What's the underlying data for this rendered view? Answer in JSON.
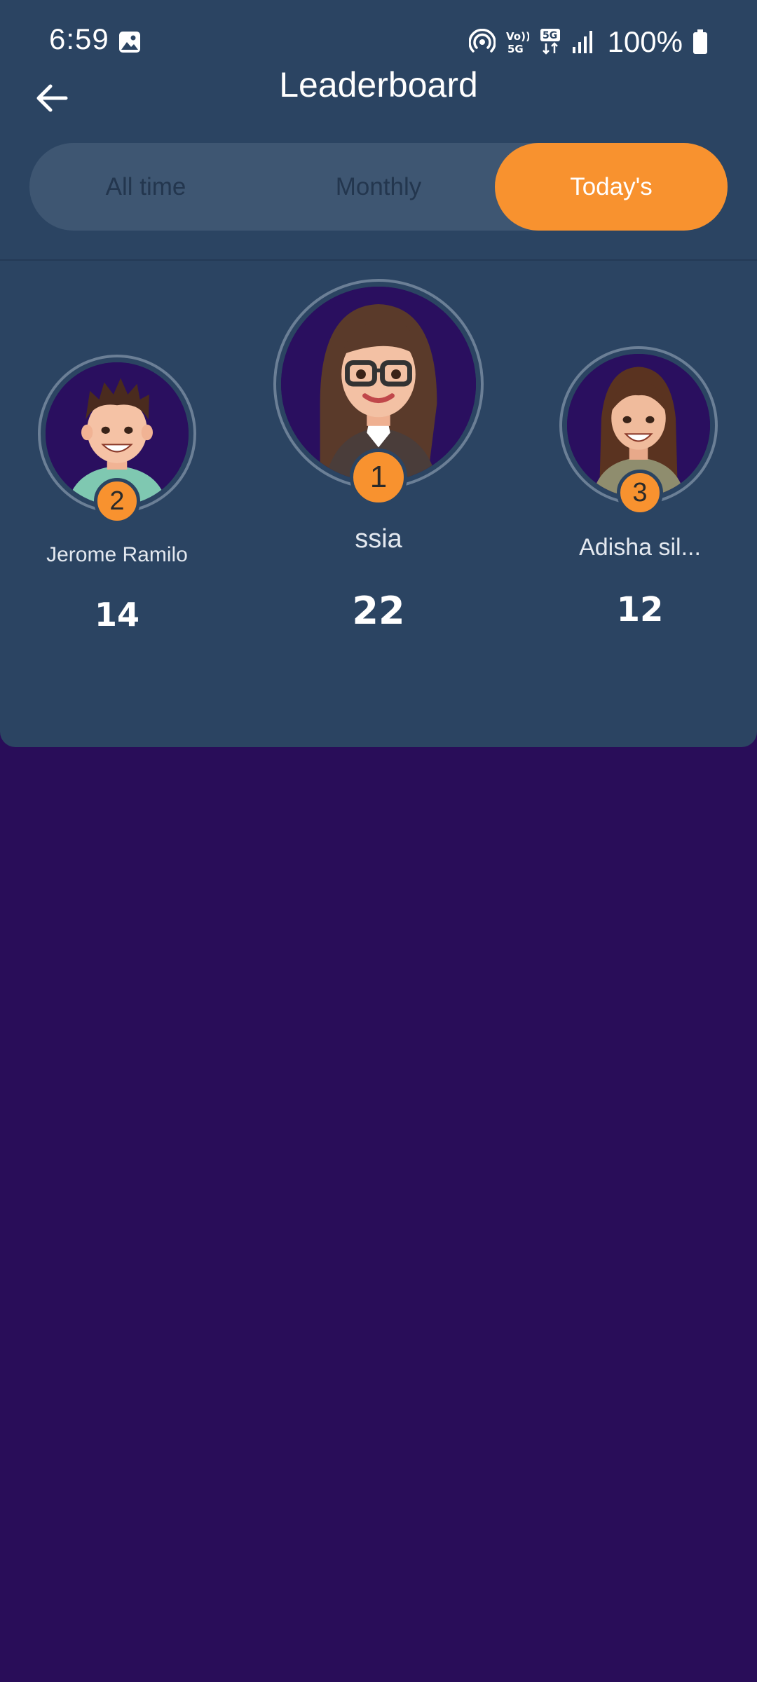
{
  "status_bar": {
    "time": "6:59",
    "battery": "100%",
    "icons": [
      "gallery-icon",
      "hotspot-icon",
      "volte-5g-icon",
      "5g-data-icon",
      "signal-icon",
      "battery-icon"
    ]
  },
  "header": {
    "title": "Leaderboard",
    "back_icon": "arrow-left-icon"
  },
  "tabs": [
    {
      "label": "All time",
      "selected": false
    },
    {
      "label": "Monthly",
      "selected": false
    },
    {
      "label": "Today's",
      "selected": true
    }
  ],
  "podium": [
    {
      "rank": "1",
      "name": "ssia",
      "score": "22"
    },
    {
      "rank": "2",
      "name": "Jerome Ramilo",
      "score": "14"
    },
    {
      "rank": "3",
      "name": "Adisha sil...",
      "score": "12"
    }
  ],
  "colors": {
    "background": "#290d59",
    "panel": "#2b4462",
    "accent": "#f8922f",
    "tab_track": "#3e5672"
  }
}
